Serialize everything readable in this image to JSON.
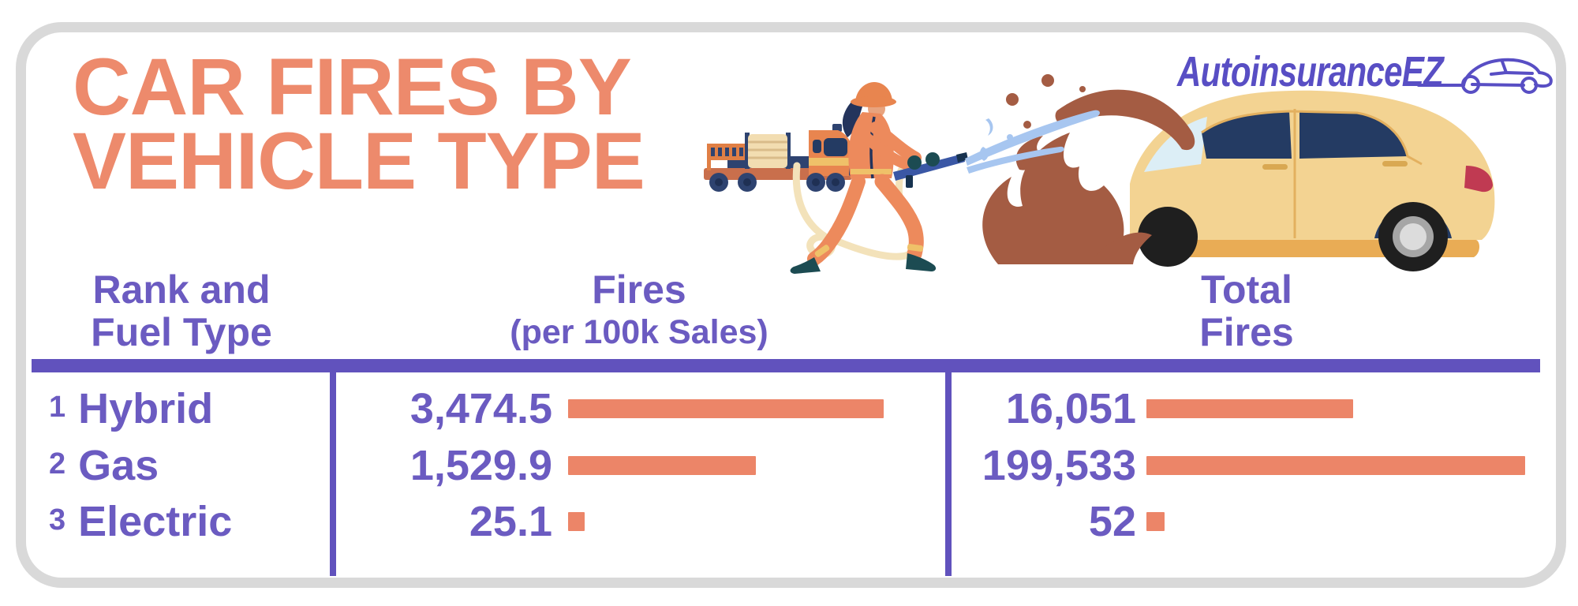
{
  "page": {
    "background_color": "#ffffff",
    "card_border_color": "#d9d9d9"
  },
  "header": {
    "title_line1": "CAR FIRES BY",
    "title_line2": "VEHICLE TYPE",
    "title_color": "#ED8A6C",
    "logo_text": "AutoinsuranceEZ",
    "logo_color": "#584EC4"
  },
  "table": {
    "accent_rule_color": "#6152BD",
    "text_color": "#6B5BC1",
    "bar_color": "#EC8568",
    "columns": [
      {
        "id": "rank-fuel",
        "label_line1": "Rank and",
        "label_line2": "Fuel Type"
      },
      {
        "id": "fires-100k",
        "label_line1": "Fires",
        "label_line2": "(per 100k Sales)"
      },
      {
        "id": "total",
        "label_line1": "Total",
        "label_line2": "Fires"
      }
    ],
    "rows": [
      {
        "rank": "1",
        "fuel": "Hybrid",
        "fires_per_100k": "3,474.5",
        "fires_bar_w": 400,
        "total_fires": "16,051",
        "total_bar_w": 262
      },
      {
        "rank": "2",
        "fuel": "Gas",
        "fires_per_100k": "1,529.9",
        "fires_bar_w": 238,
        "total_fires": "199,533",
        "total_bar_w": 480
      },
      {
        "rank": "3",
        "fuel": "Electric",
        "fires_per_100k": "25.1",
        "fires_bar_w": 21,
        "total_fires": "52",
        "total_bar_w": 23
      }
    ]
  },
  "chart_data": {
    "type": "bar",
    "orientation": "horizontal",
    "title": "Car Fires by Vehicle Type",
    "categories": [
      "Hybrid",
      "Gas",
      "Electric"
    ],
    "ranks": [
      1,
      2,
      3
    ],
    "series": [
      {
        "name": "Fires (per 100k Sales)",
        "values": [
          3474.5,
          1529.9,
          25.1
        ]
      },
      {
        "name": "Total Fires",
        "values": [
          16051,
          199533,
          52
        ]
      }
    ],
    "bar_color": "#EC8568",
    "legend_position": "none",
    "grid": false
  }
}
